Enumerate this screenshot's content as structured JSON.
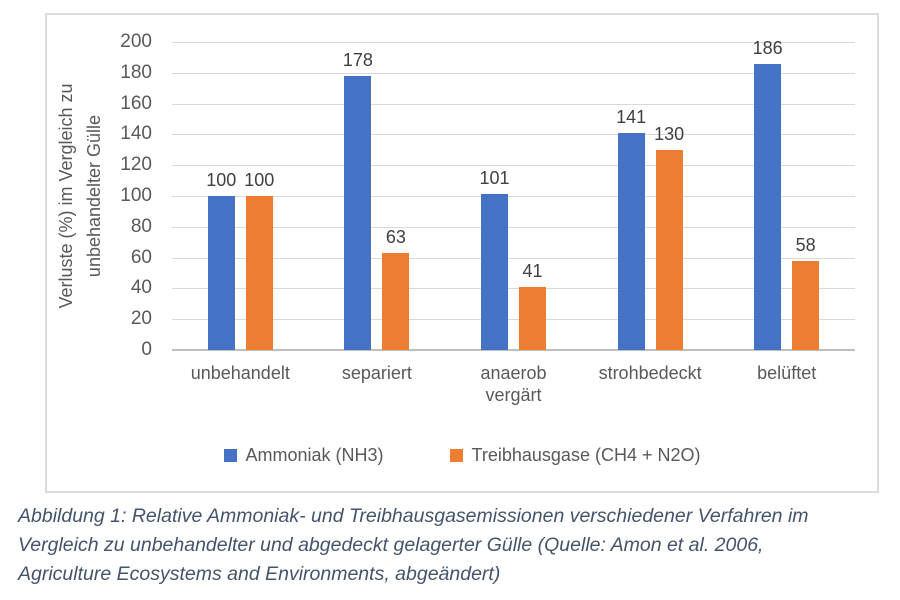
{
  "chart_data": {
    "type": "bar",
    "title": "",
    "categories": [
      "unbehandelt",
      "separiert",
      "anaerob vergärt",
      "strohbedeckt",
      "belüftet"
    ],
    "series": [
      {
        "name": "Ammoniak (NH3)",
        "color": "#4472C4",
        "values": [
          100,
          178,
          101,
          141,
          186
        ]
      },
      {
        "name": "Treibhausgase (CH4 + N2O)",
        "color": "#ED7D31",
        "values": [
          100,
          63,
          41,
          130,
          58
        ]
      }
    ],
    "xlabel": "",
    "ylabel": "Verluste (%) im Vergleich zu unbehandelter Gülle",
    "ylabel_lines": [
      "Verluste (%) im Vergleich zu",
      "unbehandelter Gülle"
    ],
    "ylim": [
      0,
      200
    ],
    "ytick_step": 20,
    "grid": true,
    "data_labels": true,
    "legend_position": "bottom"
  },
  "caption": {
    "lines": [
      "Abbildung 1: Relative Ammoniak- und Treibhausgasemissionen verschiedener Verfahren im",
      "Vergleich zu unbehandelter und abgedeckt gelagerter Gülle (Quelle: Amon et al. 2006,",
      "Agriculture Ecosystems and Environments, abgeändert)"
    ]
  },
  "colors": {
    "series_blue": "#4472C4",
    "series_orange": "#ED7D31",
    "frame_border": "#DCDCDC",
    "gridline": "#D9D9D9",
    "axis_line": "#BFBFBF",
    "chart_text": "#595959",
    "data_label_text": "#404040",
    "caption_text": "#44546A"
  }
}
